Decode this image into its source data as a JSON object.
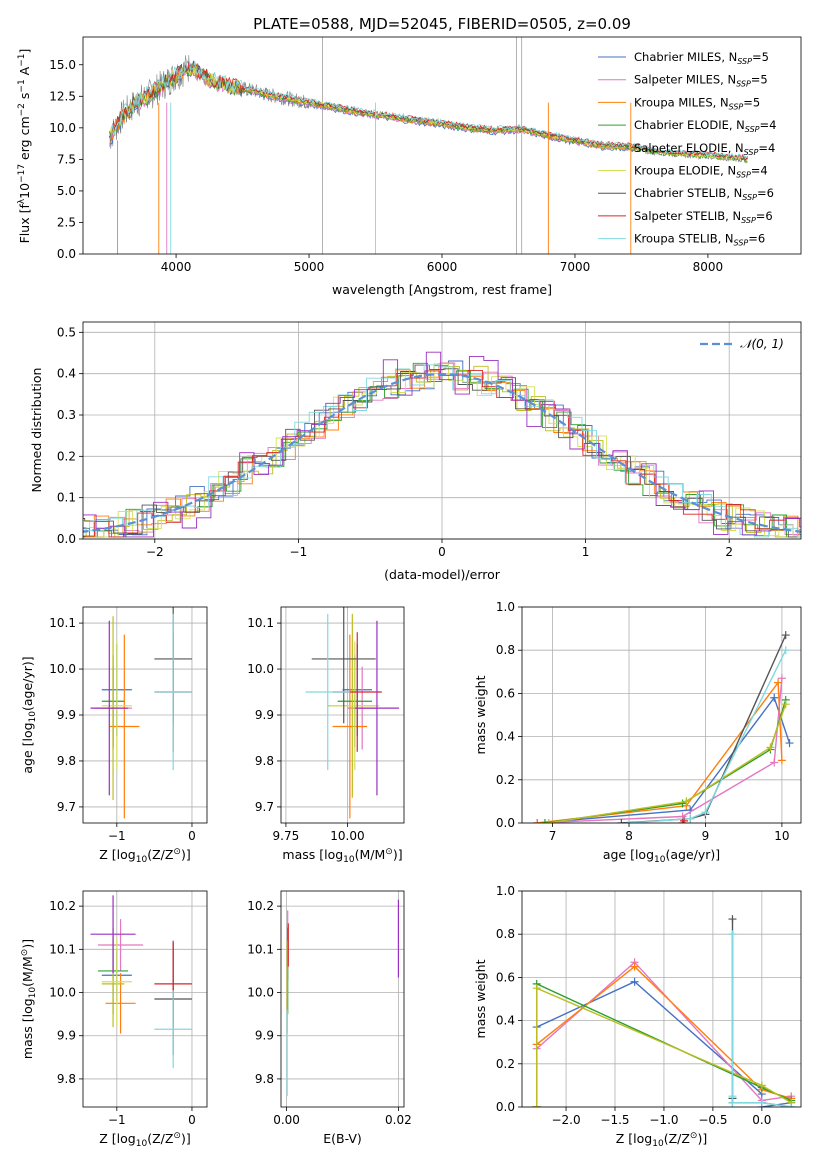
{
  "figure_title": "PLATE=0588, MJD=52045, FIBERID=0505, z=0.09",
  "colors": {
    "grid": "#b0b0b0",
    "series": [
      "#4472c4",
      "#e377c2",
      "#ff7f0e",
      "#2ca02c",
      "#bcbd22",
      "#d4e157",
      "#555555",
      "#d62728",
      "#80d8e0",
      "#9b30c0",
      "#808080"
    ]
  },
  "chart_data": [
    {
      "id": "spectrum",
      "type": "line",
      "xlabel": "wavelength [Angstrom, rest frame]",
      "ylabel": "Flux [f",
      "ylabel_parts": [
        "Flux [f",
        "λ",
        "10",
        "−17",
        " erg cm",
        "−2",
        " s",
        "−1",
        " A",
        "−1",
        "]"
      ],
      "xlim": [
        3300,
        8700
      ],
      "ylim": [
        0,
        17.2
      ],
      "xticks": [
        4000,
        5000,
        6000,
        7000,
        8000
      ],
      "yticks": [
        0.0,
        2.5,
        5.0,
        7.5,
        10.0,
        12.5,
        15.0
      ],
      "observed": {
        "x": [
          3500,
          3600,
          3700,
          3800,
          3900,
          4000,
          4100,
          4200,
          4300,
          4400,
          4500,
          4600,
          4700,
          4800,
          4900,
          5000,
          5200,
          5400,
          5600,
          5800,
          6000,
          6200,
          6400,
          6600,
          6800,
          7000,
          7200,
          7400,
          7600,
          7800,
          8000,
          8200,
          8300
        ],
        "y": [
          9.2,
          11.0,
          12.0,
          12.6,
          13.4,
          14.2,
          14.8,
          14.2,
          13.6,
          13.3,
          13.1,
          12.9,
          12.6,
          12.4,
          12.2,
          12.0,
          11.6,
          11.2,
          10.9,
          10.6,
          10.3,
          10.0,
          9.8,
          9.9,
          9.4,
          9.0,
          8.6,
          8.5,
          8.1,
          7.9,
          7.8,
          7.6,
          7.5
        ]
      },
      "legend_position": "upper right",
      "legend": [
        {
          "label": "Chabrier MILES, N",
          "sub": "SSP",
          "suffix": "=5"
        },
        {
          "label": "Salpeter MILES, N",
          "sub": "SSP",
          "suffix": "=5"
        },
        {
          "label": "Kroupa MILES, N",
          "sub": "SSP",
          "suffix": "=5"
        },
        {
          "label": "Chabrier ELODIE, N",
          "sub": "SSP",
          "suffix": "=4"
        },
        {
          "label": "Salpeter ELODIE, N",
          "sub": "SSP",
          "suffix": "=4"
        },
        {
          "label": "Kroupa ELODIE, N",
          "sub": "SSP",
          "suffix": "=4"
        },
        {
          "label": "Chabrier STELIB, N",
          "sub": "SSP",
          "suffix": "=6"
        },
        {
          "label": "Salpeter STELIB, N",
          "sub": "SSP",
          "suffix": "=6"
        },
        {
          "label": "Kroupa STELIB, N",
          "sub": "SSP",
          "suffix": "=6"
        }
      ]
    },
    {
      "id": "residuals",
      "type": "histogram",
      "xlabel": "(data-model)/error",
      "ylabel": "Normed distribution",
      "xlim": [
        -2.5,
        2.5
      ],
      "ylim": [
        0,
        0.525
      ],
      "xticks": [
        -2,
        -1,
        0,
        1,
        2
      ],
      "yticks": [
        0.0,
        0.1,
        0.2,
        0.3,
        0.4,
        0.5
      ],
      "legend": "𝒩(0, 1)",
      "legend_position": "upper right",
      "gaussian": {
        "mu": 0,
        "sigma": 1
      }
    },
    {
      "id": "age-vs-Z",
      "type": "errorbar",
      "xlabel": "Z [log",
      "xlabel_parts": [
        "Z [log",
        "10",
        "(Z/Z",
        "⊙",
        ")]"
      ],
      "ylabel_parts": [
        "age  [log",
        "10",
        "(age/yr)]"
      ],
      "xlim": [
        -1.45,
        0.2
      ],
      "ylim": [
        9.665,
        10.135
      ],
      "xticks": [
        -1,
        0
      ],
      "yticks": [
        9.7,
        9.8,
        9.9,
        10.0,
        10.1
      ],
      "points": [
        {
          "x": -1.0,
          "y": 9.955,
          "xerr": 0.2,
          "yerr": 0.1,
          "c": 0
        },
        {
          "x": -1.05,
          "y": 9.915,
          "xerr": 0.25,
          "yerr": 0.09,
          "c": 1
        },
        {
          "x": -0.9,
          "y": 9.875,
          "xerr": 0.2,
          "yerr": 0.2,
          "c": 2
        },
        {
          "x": -1.05,
          "y": 9.93,
          "xerr": 0.15,
          "yerr": 0.1,
          "c": 3
        },
        {
          "x": -1.05,
          "y": 9.915,
          "xerr": 0.15,
          "yerr": 0.2,
          "c": 4
        },
        {
          "x": -1.0,
          "y": 9.92,
          "xerr": 0.2,
          "yerr": 0.14,
          "c": 5
        },
        {
          "x": -0.25,
          "y": 10.022,
          "xerr": 0.25,
          "yerr": 0.14,
          "c": 6
        },
        {
          "x": -0.25,
          "y": 9.95,
          "xerr": 0.25,
          "yerr": 0.13,
          "c": 7
        },
        {
          "x": -0.25,
          "y": 9.95,
          "xerr": 0.25,
          "yerr": 0.17,
          "c": 8
        },
        {
          "x": -1.1,
          "y": 9.915,
          "xerr": 0.25,
          "yerr": 0.19,
          "c": 9
        }
      ]
    },
    {
      "id": "age-vs-mass",
      "type": "errorbar",
      "xlabel_parts": [
        "mass [log",
        "10",
        "(M/M",
        "⊙",
        ")]"
      ],
      "xlim": [
        9.73,
        10.23
      ],
      "ylim": [
        9.665,
        10.135
      ],
      "xticks": [
        9.75,
        10.0
      ],
      "xtick_labels": [
        "9.75",
        "10.00"
      ],
      "yticks": [
        9.7,
        9.8,
        9.9,
        10.0,
        10.1
      ],
      "points": [
        {
          "x": 10.04,
          "y": 9.955,
          "xerr": 0.06,
          "yerr": 0.1,
          "c": 0
        },
        {
          "x": 10.06,
          "y": 9.915,
          "xerr": 0.06,
          "yerr": 0.09,
          "c": 1
        },
        {
          "x": 10.01,
          "y": 9.875,
          "xerr": 0.07,
          "yerr": 0.2,
          "c": 2
        },
        {
          "x": 10.03,
          "y": 9.93,
          "xerr": 0.07,
          "yerr": 0.1,
          "c": 3
        },
        {
          "x": 10.02,
          "y": 9.92,
          "xerr": 0.1,
          "yerr": 0.2,
          "c": 4
        },
        {
          "x": 10.03,
          "y": 9.92,
          "xerr": 0.1,
          "yerr": 0.14,
          "c": 5
        },
        {
          "x": 9.985,
          "y": 10.022,
          "xerr": 0.13,
          "yerr": 0.14,
          "c": 6
        },
        {
          "x": 10.04,
          "y": 9.95,
          "xerr": 0.1,
          "yerr": 0.13,
          "c": 7
        },
        {
          "x": 9.92,
          "y": 9.95,
          "xerr": 0.09,
          "yerr": 0.17,
          "c": 8
        },
        {
          "x": 10.12,
          "y": 9.915,
          "xerr": 0.09,
          "yerr": 0.19,
          "c": 9
        }
      ]
    },
    {
      "id": "weight-vs-age",
      "type": "line",
      "xlabel_parts": [
        "age  [log",
        "10",
        "(age/yr)]"
      ],
      "ylabel": "mass weight",
      "xlim": [
        6.6,
        10.25
      ],
      "ylim": [
        0,
        1.0
      ],
      "xticks": [
        7,
        8,
        9,
        10
      ],
      "yticks": [
        0.0,
        0.2,
        0.4,
        0.6,
        0.8,
        1.0
      ],
      "series": [
        {
          "c": 0,
          "x": [
            6.8,
            8.8,
            9.9,
            10.1
          ],
          "y": [
            0.0,
            0.06,
            0.58,
            0.37
          ]
        },
        {
          "c": 1,
          "x": [
            6.8,
            8.7,
            9.9,
            10.0
          ],
          "y": [
            0.0,
            0.03,
            0.28,
            0.67
          ]
        },
        {
          "c": 2,
          "x": [
            6.8,
            8.75,
            9.95,
            10.0
          ],
          "y": [
            0.0,
            0.08,
            0.65,
            0.29
          ]
        },
        {
          "c": 3,
          "x": [
            6.9,
            8.7,
            9.85,
            10.05
          ],
          "y": [
            0.0,
            0.09,
            0.34,
            0.57
          ]
        },
        {
          "c": 4,
          "x": [
            6.95,
            8.75,
            9.85,
            10.05
          ],
          "y": [
            0.0,
            0.1,
            0.35,
            0.55
          ]
        },
        {
          "c": 6,
          "x": [
            7.9,
            8.8,
            9.0,
            10.05
          ],
          "y": [
            0.0,
            0.02,
            0.04,
            0.87
          ]
        },
        {
          "c": 8,
          "x": [
            8.0,
            8.8,
            9.0,
            10.05
          ],
          "y": [
            0.0,
            0.02,
            0.05,
            0.8
          ]
        },
        {
          "c": 7,
          "x": [
            8.7,
            8.72
          ],
          "y": [
            0.0,
            0.01
          ]
        }
      ]
    },
    {
      "id": "mass-vs-Z",
      "type": "errorbar",
      "xlabel_parts": [
        "Z [log",
        "10",
        "(Z/Z",
        "⊙",
        ")]"
      ],
      "ylabel_parts": [
        "mass [log",
        "10",
        "(M/M",
        "⊙",
        ")]"
      ],
      "xlim": [
        -1.45,
        0.2
      ],
      "ylim": [
        9.735,
        10.235
      ],
      "xticks": [
        -1,
        0
      ],
      "yticks": [
        9.8,
        9.9,
        10.0,
        10.1,
        10.2
      ],
      "points": [
        {
          "x": -1.0,
          "y": 10.04,
          "xerr": 0.2,
          "yerr": 0.06,
          "c": 0
        },
        {
          "x": -0.95,
          "y": 10.11,
          "xerr": 0.3,
          "yerr": 0.06,
          "c": 1
        },
        {
          "x": -0.95,
          "y": 9.975,
          "xerr": 0.2,
          "yerr": 0.07,
          "c": 2
        },
        {
          "x": -1.05,
          "y": 10.05,
          "xerr": 0.2,
          "yerr": 0.1,
          "c": 3
        },
        {
          "x": -1.05,
          "y": 10.02,
          "xerr": 0.15,
          "yerr": 0.1,
          "c": 4
        },
        {
          "x": -1.0,
          "y": 10.025,
          "xerr": 0.2,
          "yerr": 0.1,
          "c": 5
        },
        {
          "x": -0.25,
          "y": 9.985,
          "xerr": 0.25,
          "yerr": 0.13,
          "c": 6
        },
        {
          "x": -0.25,
          "y": 10.02,
          "xerr": 0.25,
          "yerr": 0.1,
          "c": 7
        },
        {
          "x": -0.25,
          "y": 9.915,
          "xerr": 0.25,
          "yerr": 0.09,
          "c": 8
        },
        {
          "x": -1.05,
          "y": 10.135,
          "xerr": 0.3,
          "yerr": 0.09,
          "c": 9
        }
      ]
    },
    {
      "id": "mass-vs-EBV",
      "type": "errorbar",
      "xlabel": "E(B-V)",
      "xlim": [
        -0.001,
        0.021
      ],
      "ylim": [
        9.735,
        10.235
      ],
      "xticks": [
        0.0,
        0.02
      ],
      "xtick_labels": [
        "0.00",
        "0.02"
      ],
      "yticks": [
        9.8,
        9.9,
        10.0,
        10.1,
        10.2
      ],
      "points": [
        {
          "x": 0.0001,
          "y": 10.04,
          "xerr": 0,
          "yerr": 0.06,
          "c": 0
        },
        {
          "x": 0.0002,
          "y": 10.11,
          "xerr": 0,
          "yerr": 0.08,
          "c": 1
        },
        {
          "x": 0.0001,
          "y": 9.975,
          "xerr": 0,
          "yerr": 0.07,
          "c": 2
        },
        {
          "x": 0.0002,
          "y": 10.05,
          "xerr": 0,
          "yerr": 0.1,
          "c": 3
        },
        {
          "x": 0.0001,
          "y": 10.02,
          "xerr": 0,
          "yerr": 0.1,
          "c": 4
        },
        {
          "x": 0.0003,
          "y": 10.11,
          "xerr": 0,
          "yerr": 0.05,
          "c": 7
        },
        {
          "x": 0.0001,
          "y": 9.86,
          "xerr": 0,
          "yerr": 0.1,
          "c": 8
        },
        {
          "x": 0.02,
          "y": 10.125,
          "xerr": 0,
          "yerr": 0.09,
          "c": 9
        }
      ]
    },
    {
      "id": "weight-vs-Z",
      "type": "line",
      "xlabel_parts": [
        "Z [log",
        "10",
        "(Z/Z",
        "⊙",
        ")]"
      ],
      "ylabel": "mass weight",
      "xlim": [
        -2.45,
        0.4
      ],
      "ylim": [
        0,
        1.0
      ],
      "xticks": [
        -2.0,
        -1.5,
        -1.0,
        -0.5,
        0.0
      ],
      "xtick_labels": [
        "−2.0",
        "−1.5",
        "−1.0",
        "−0.5",
        "0.0"
      ],
      "yticks": [
        0.0,
        0.2,
        0.4,
        0.6,
        0.8,
        1.0
      ],
      "series": [
        {
          "c": 0,
          "x": [
            -2.3,
            -2.3,
            -1.3,
            0.0,
            0.0,
            0.3
          ],
          "y": [
            0.0,
            0.37,
            0.58,
            0.06,
            0.0,
            0.02
          ]
        },
        {
          "c": 1,
          "x": [
            -2.3,
            -2.3,
            -1.3,
            0.0,
            0.3
          ],
          "y": [
            0.0,
            0.27,
            0.67,
            0.03,
            0.05
          ]
        },
        {
          "c": 2,
          "x": [
            -2.3,
            -2.3,
            -1.3,
            0.0,
            0.3
          ],
          "y": [
            0.0,
            0.29,
            0.65,
            0.08,
            0.04
          ]
        },
        {
          "c": 3,
          "x": [
            -2.3,
            -2.3,
            0.0,
            0.3
          ],
          "y": [
            0.0,
            0.57,
            0.09,
            0.03
          ]
        },
        {
          "c": 4,
          "x": [
            -2.3,
            -2.3,
            0.0,
            0.3
          ],
          "y": [
            0.0,
            0.55,
            0.1,
            0.02
          ]
        },
        {
          "c": 6,
          "x": [
            -0.3,
            -0.3,
            -0.3,
            0.0,
            0.3
          ],
          "y": [
            0.87,
            0.04,
            0.02,
            0.02,
            0.0
          ]
        },
        {
          "c": 8,
          "x": [
            -0.3,
            -0.3,
            -0.3,
            0.0,
            0.3
          ],
          "y": [
            0.8,
            0.05,
            0.02,
            0.02,
            0.0
          ]
        }
      ]
    }
  ]
}
